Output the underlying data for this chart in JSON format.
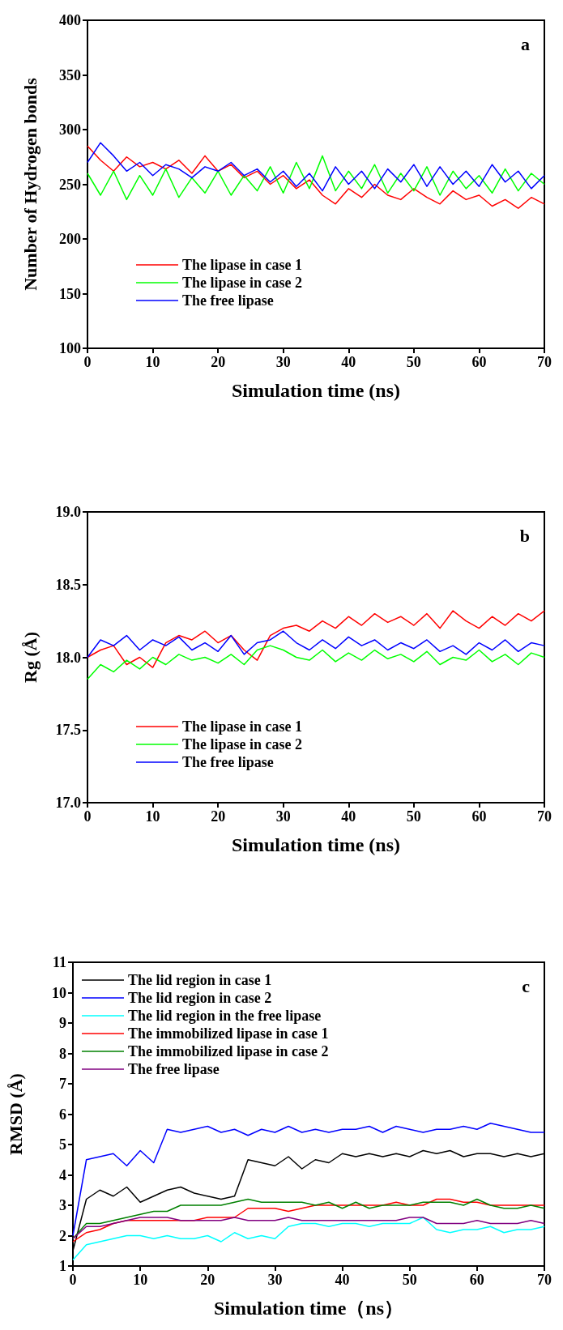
{
  "chart_data": [
    {
      "type": "line",
      "xlabel": "Simulation time (ns)",
      "ylabel": "Number of Hydrogen bonds",
      "annotations": [
        "a"
      ],
      "legend": "bottom left",
      "grid": false,
      "xlim": [
        0,
        70
      ],
      "xticks": [
        0,
        10,
        20,
        30,
        40,
        50,
        60,
        70
      ],
      "ylim": [
        100,
        400
      ],
      "yticks": [
        100,
        150,
        200,
        250,
        300,
        350,
        400
      ],
      "x": [
        0,
        2,
        4,
        6,
        8,
        10,
        12,
        14,
        16,
        18,
        20,
        22,
        24,
        26,
        28,
        30,
        32,
        34,
        36,
        38,
        40,
        42,
        44,
        46,
        48,
        50,
        52,
        54,
        56,
        58,
        60,
        62,
        64,
        66,
        68,
        70
      ],
      "series": [
        {
          "name": "The lipase in case 1",
          "color": "#ff0000",
          "values": [
            285,
            272,
            262,
            275,
            266,
            270,
            264,
            272,
            260,
            276,
            262,
            268,
            256,
            262,
            250,
            258,
            246,
            254,
            240,
            232,
            246,
            238,
            250,
            240,
            236,
            246,
            238,
            232,
            244,
            236,
            240,
            230,
            236,
            228,
            238,
            232
          ]
        },
        {
          "name": "The lipase in case 2",
          "color": "#00ff00",
          "values": [
            260,
            240,
            262,
            236,
            258,
            240,
            264,
            238,
            256,
            242,
            262,
            240,
            258,
            244,
            266,
            242,
            270,
            246,
            276,
            244,
            262,
            246,
            268,
            242,
            260,
            244,
            266,
            240,
            262,
            246,
            258,
            242,
            264,
            244,
            260,
            250
          ]
        },
        {
          "name": "The free lipase",
          "color": "#0000ff",
          "values": [
            270,
            288,
            276,
            262,
            270,
            258,
            268,
            264,
            256,
            266,
            262,
            270,
            258,
            264,
            252,
            262,
            248,
            260,
            244,
            266,
            250,
            262,
            246,
            264,
            252,
            268,
            248,
            266,
            250,
            262,
            248,
            268,
            252,
            262,
            246,
            258
          ]
        }
      ]
    },
    {
      "type": "line",
      "xlabel": "Simulation time (ns)",
      "ylabel": "Rg (Å)",
      "annotations": [
        "b"
      ],
      "legend": "bottom left",
      "grid": false,
      "xlim": [
        0,
        70
      ],
      "xticks": [
        0,
        10,
        20,
        30,
        40,
        50,
        60,
        70
      ],
      "ylim": [
        17.0,
        19.0
      ],
      "yticks": [
        {
          "value": 17,
          "label": "17.0"
        },
        17.5,
        {
          "value": 18,
          "label": "18.0"
        },
        18.5,
        {
          "value": 19,
          "label": "19.0"
        }
      ],
      "x": [
        0,
        2,
        4,
        6,
        8,
        10,
        12,
        14,
        16,
        18,
        20,
        22,
        24,
        26,
        28,
        30,
        32,
        34,
        36,
        38,
        40,
        42,
        44,
        46,
        48,
        50,
        52,
        54,
        56,
        58,
        60,
        62,
        64,
        66,
        68,
        70
      ],
      "series": [
        {
          "name": "The lipase in case 1",
          "color": "#ff0000",
          "values": [
            18.0,
            18.05,
            18.08,
            17.95,
            18.0,
            17.93,
            18.1,
            18.15,
            18.12,
            18.18,
            18.1,
            18.15,
            18.05,
            17.98,
            18.15,
            18.2,
            18.22,
            18.18,
            18.25,
            18.2,
            18.28,
            18.22,
            18.3,
            18.24,
            18.28,
            18.22,
            18.3,
            18.2,
            18.32,
            18.25,
            18.2,
            18.28,
            18.22,
            18.3,
            18.25,
            18.32
          ]
        },
        {
          "name": "The lipase in case 2",
          "color": "#00ff00",
          "values": [
            17.85,
            17.95,
            17.9,
            17.98,
            17.92,
            18.0,
            17.95,
            18.02,
            17.98,
            18.0,
            17.96,
            18.02,
            17.95,
            18.05,
            18.08,
            18.05,
            18.0,
            17.98,
            18.05,
            17.97,
            18.03,
            17.98,
            18.05,
            17.99,
            18.02,
            17.97,
            18.04,
            17.95,
            18.0,
            17.98,
            18.05,
            17.97,
            18.02,
            17.95,
            18.03,
            18.0
          ]
        },
        {
          "name": "The free lipase",
          "color": "#0000ff",
          "values": [
            18.0,
            18.12,
            18.08,
            18.15,
            18.05,
            18.12,
            18.08,
            18.14,
            18.05,
            18.1,
            18.04,
            18.15,
            18.02,
            18.1,
            18.12,
            18.18,
            18.1,
            18.05,
            18.12,
            18.06,
            18.14,
            18.08,
            18.12,
            18.05,
            18.1,
            18.06,
            18.12,
            18.04,
            18.08,
            18.02,
            18.1,
            18.05,
            18.12,
            18.04,
            18.1,
            18.08
          ]
        }
      ]
    },
    {
      "type": "line",
      "xlabel": "Simulation time（ns）",
      "ylabel": "RMSD (Å)",
      "annotations": [
        "c"
      ],
      "legend": "top left",
      "grid": false,
      "xlim": [
        0,
        70
      ],
      "xticks": [
        0,
        10,
        20,
        30,
        40,
        50,
        60,
        70
      ],
      "ylim": [
        1,
        11
      ],
      "yticks": [
        1,
        2,
        3,
        4,
        5,
        6,
        7,
        8,
        9,
        10,
        11
      ],
      "x": [
        0,
        2,
        4,
        6,
        8,
        10,
        12,
        14,
        16,
        18,
        20,
        22,
        24,
        26,
        28,
        30,
        32,
        34,
        36,
        38,
        40,
        42,
        44,
        46,
        48,
        50,
        52,
        54,
        56,
        58,
        60,
        62,
        64,
        66,
        68,
        70
      ],
      "series": [
        {
          "name": "The lid region in case 1",
          "color": "#000000",
          "values": [
            1.5,
            3.2,
            3.5,
            3.3,
            3.6,
            3.1,
            3.3,
            3.5,
            3.6,
            3.4,
            3.3,
            3.2,
            3.3,
            4.5,
            4.4,
            4.3,
            4.6,
            4.2,
            4.5,
            4.4,
            4.7,
            4.6,
            4.7,
            4.6,
            4.7,
            4.6,
            4.8,
            4.7,
            4.8,
            4.6,
            4.7,
            4.7,
            4.6,
            4.7,
            4.6,
            4.7
          ]
        },
        {
          "name": "The lid region in case 2",
          "color": "#0000ff",
          "values": [
            2.0,
            4.5,
            4.6,
            4.7,
            4.3,
            4.8,
            4.4,
            5.5,
            5.4,
            5.5,
            5.6,
            5.4,
            5.5,
            5.3,
            5.5,
            5.4,
            5.6,
            5.4,
            5.5,
            5.4,
            5.5,
            5.5,
            5.6,
            5.4,
            5.6,
            5.5,
            5.4,
            5.5,
            5.5,
            5.6,
            5.5,
            5.7,
            5.6,
            5.5,
            5.4,
            5.4
          ]
        },
        {
          "name": "The lid region in the free lipase",
          "color": "#00ffff",
          "values": [
            1.2,
            1.7,
            1.8,
            1.9,
            2.0,
            2.0,
            1.9,
            2.0,
            1.9,
            1.9,
            2.0,
            1.8,
            2.1,
            1.9,
            2.0,
            1.9,
            2.3,
            2.4,
            2.4,
            2.3,
            2.4,
            2.4,
            2.3,
            2.4,
            2.4,
            2.4,
            2.6,
            2.2,
            2.1,
            2.2,
            2.2,
            2.3,
            2.1,
            2.2,
            2.2,
            2.3
          ]
        },
        {
          "name": "The immobilized lipase in case 1",
          "color": "#ff0000",
          "values": [
            1.8,
            2.1,
            2.2,
            2.4,
            2.5,
            2.5,
            2.5,
            2.5,
            2.5,
            2.5,
            2.6,
            2.6,
            2.6,
            2.9,
            2.9,
            2.9,
            2.8,
            2.9,
            3.0,
            3.0,
            3.0,
            3.0,
            3.0,
            3.0,
            3.1,
            3.0,
            3.0,
            3.2,
            3.2,
            3.1,
            3.1,
            3.0,
            3.0,
            3.0,
            3.0,
            3.0
          ]
        },
        {
          "name": "The immobilized lipase in case 2",
          "color": "#008000",
          "values": [
            1.9,
            2.4,
            2.4,
            2.5,
            2.6,
            2.7,
            2.8,
            2.8,
            3.0,
            3.0,
            3.0,
            3.0,
            3.1,
            3.2,
            3.1,
            3.1,
            3.1,
            3.1,
            3.0,
            3.1,
            2.9,
            3.1,
            2.9,
            3.0,
            3.0,
            3.0,
            3.1,
            3.1,
            3.1,
            3.0,
            3.2,
            3.0,
            2.9,
            2.9,
            3.0,
            2.9
          ]
        },
        {
          "name": "The free lipase",
          "color": "#800080",
          "values": [
            1.9,
            2.3,
            2.3,
            2.4,
            2.5,
            2.6,
            2.6,
            2.6,
            2.5,
            2.5,
            2.5,
            2.5,
            2.6,
            2.5,
            2.5,
            2.5,
            2.6,
            2.5,
            2.5,
            2.5,
            2.5,
            2.5,
            2.5,
            2.5,
            2.5,
            2.6,
            2.6,
            2.4,
            2.4,
            2.4,
            2.5,
            2.4,
            2.4,
            2.4,
            2.5,
            2.4
          ]
        }
      ]
    }
  ]
}
